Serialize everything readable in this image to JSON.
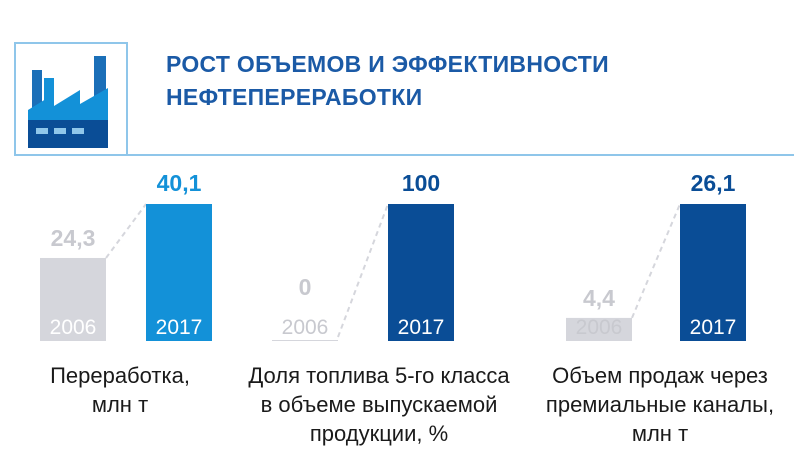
{
  "header": {
    "title_line1": "РОСТ ОБЪЕМОВ И ЭФФЕКТИВНОСТИ",
    "title_line2": "НЕФТЕПЕРЕРАБОТКИ",
    "icon": "factory-icon"
  },
  "colors": {
    "grey_bar": "#d5d6dc",
    "grey_text": "#c8c9cf",
    "blue_bar": "#1391d8",
    "blue_text": "#1391d8",
    "navy_bar": "#0a4d96",
    "navy_text": "#0a4d96",
    "title": "#1b5aa6",
    "frame": "#8fc6ea"
  },
  "chart_data": [
    {
      "type": "bar",
      "categories": [
        "2006",
        "2017"
      ],
      "values": [
        24.3,
        40.1
      ],
      "value_labels": [
        "24,3",
        "40,1"
      ],
      "caption_lines": [
        "Переработка,",
        "млн т"
      ]
    },
    {
      "type": "bar",
      "categories": [
        "2006",
        "2017"
      ],
      "values": [
        0,
        100
      ],
      "value_labels": [
        "0",
        "100"
      ],
      "caption_lines": [
        "Доля топлива 5-го класса",
        "в объеме выпускаемой",
        "продукции, %"
      ]
    },
    {
      "type": "bar",
      "categories": [
        "2006",
        "2017"
      ],
      "values": [
        4.4,
        26.1
      ],
      "value_labels": [
        "4,4",
        "26,1"
      ],
      "caption_lines": [
        "Объем продаж через",
        "премиальные каналы,",
        "млн т"
      ]
    }
  ]
}
